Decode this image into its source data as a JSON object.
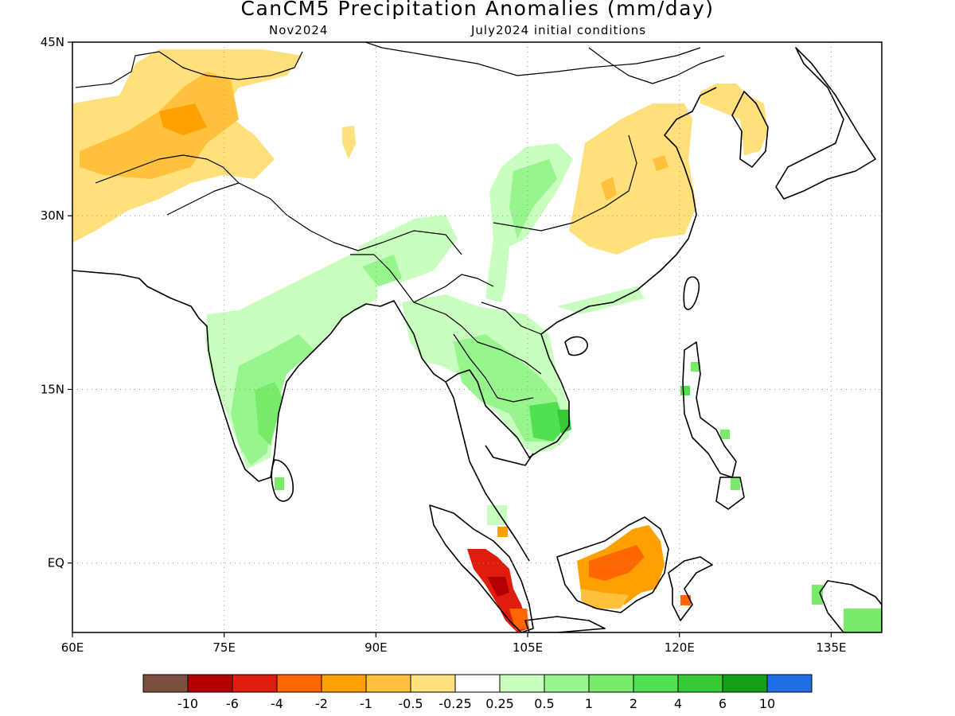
{
  "title": "CanCM5 Precipitation Anomalies (mm/day)",
  "subtitle_left": "Nov2024",
  "subtitle_right": "July2024 initial conditions",
  "map": {
    "lon_range": [
      60,
      140
    ],
    "lat_range": [
      -6,
      45
    ],
    "lon_ticks": [
      {
        "value": 60,
        "label": "60E"
      },
      {
        "value": 75,
        "label": "75E"
      },
      {
        "value": 90,
        "label": "90E"
      },
      {
        "value": 105,
        "label": "105E"
      },
      {
        "value": 120,
        "label": "120E"
      },
      {
        "value": 135,
        "label": "135E"
      }
    ],
    "lat_ticks": [
      {
        "value": 0,
        "label": "EQ"
      },
      {
        "value": 15,
        "label": "15N"
      },
      {
        "value": 30,
        "label": "30N"
      },
      {
        "value": 45,
        "label": "45N"
      }
    ],
    "grid": true
  },
  "colorbar": {
    "colors": [
      "#7b4f3f",
      "#b30000",
      "#e01c0c",
      "#ff6600",
      "#ffa000",
      "#ffc03c",
      "#ffe07a",
      "#ffffff",
      "#c8ffbe",
      "#96f58c",
      "#78ec6a",
      "#50e050",
      "#36c934",
      "#14a014",
      "#1e6ee6"
    ],
    "labels": [
      "-10",
      "-6",
      "-4",
      "-2",
      "-1",
      "-0.5",
      "-0.25",
      "0.25",
      "0.5",
      "1",
      "2",
      "4",
      "6",
      "10"
    ]
  },
  "colors": {
    "coast": "#000000",
    "grid": "#9a9a9a",
    "frame": "#000000"
  }
}
